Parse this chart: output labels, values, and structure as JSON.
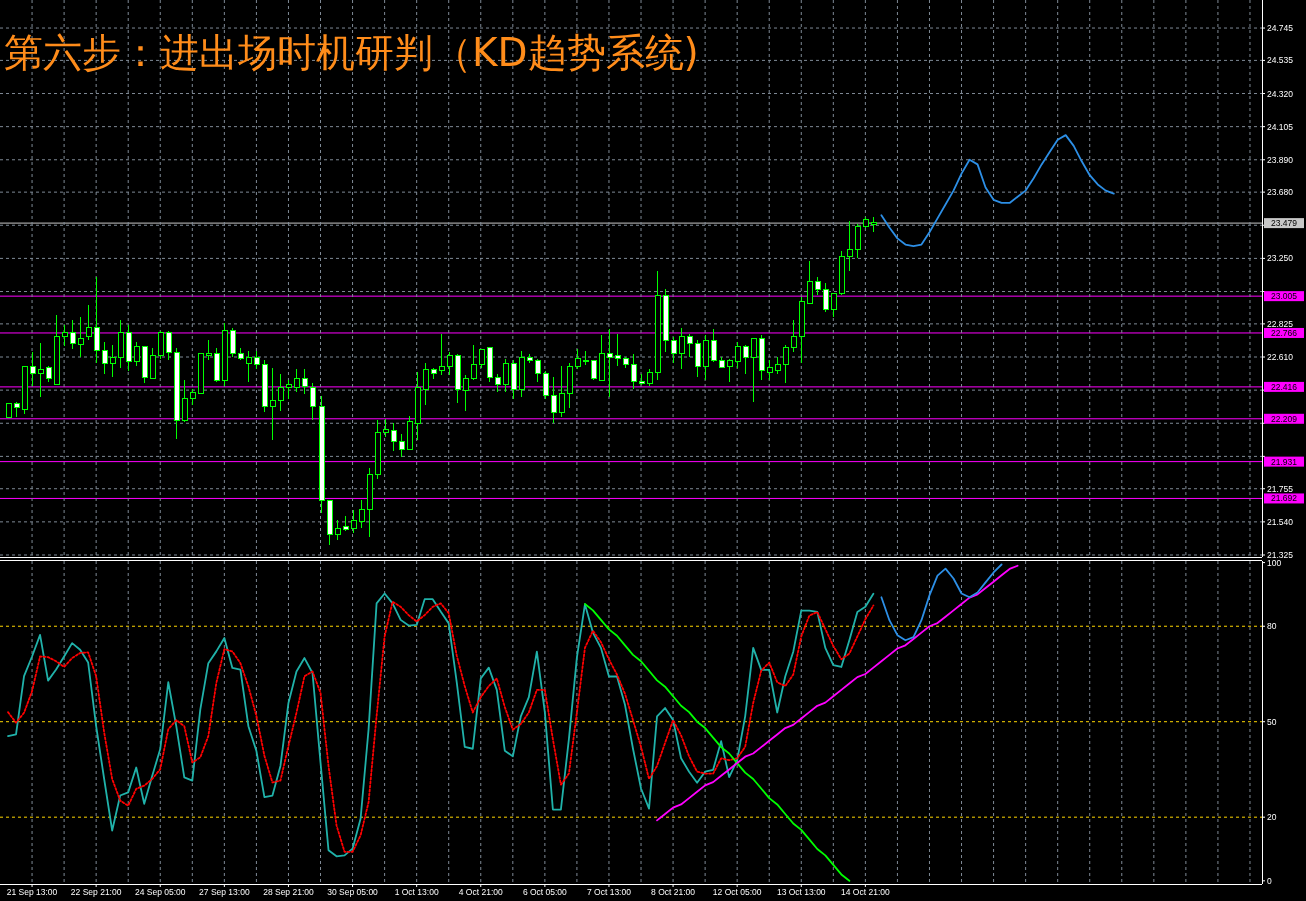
{
  "chart_data": [
    {
      "type": "candlestick",
      "title": "第六步：进出场时机研判（KD趋势系统)",
      "color": "#00ff00",
      "categories": [
        null,
        null,
        null,
        null,
        null,
        null,
        null,
        null,
        null,
        null,
        null,
        null,
        null,
        null,
        null,
        null,
        null,
        null,
        null,
        null,
        null,
        null,
        null,
        null,
        null,
        null,
        null,
        null,
        null,
        null,
        null,
        null,
        null,
        null,
        null,
        null,
        null,
        null,
        null,
        null,
        null,
        null,
        null,
        null,
        null,
        null,
        null,
        null,
        null,
        null,
        null,
        null,
        null,
        null,
        null,
        null,
        null,
        null,
        null,
        null,
        null,
        null,
        null,
        null,
        null,
        null,
        null,
        null,
        null,
        null,
        null,
        null,
        null,
        null,
        null,
        null,
        null,
        null,
        null,
        null,
        null,
        null,
        null,
        null,
        null,
        null,
        null,
        null,
        null,
        null,
        null,
        null,
        null,
        null,
        null,
        null,
        null,
        null,
        null,
        null,
        null,
        null,
        null,
        null,
        null,
        null,
        null,
        null,
        null,
        null,
        null,
        null,
        null,
        null,
        null,
        null,
        null,
        null,
        null,
        null,
        null,
        null,
        null,
        null,
        null,
        null,
        null,
        null,
        null,
        null,
        null,
        null,
        null,
        null,
        null,
        null,
        null,
        null,
        null,
        null,
        null,
        null,
        null,
        null,
        null,
        null,
        null,
        null,
        null,
        null,
        null,
        null,
        null,
        null,
        null,
        null,
        null
      ],
      "ohlc": [
        [
          22.22,
          22.31,
          22.22,
          22.31
        ],
        [
          22.31,
          22.32,
          22.22,
          22.28
        ],
        [
          22.27,
          22.55,
          22.24,
          22.55
        ],
        [
          22.55,
          22.64,
          22.42,
          22.5
        ],
        [
          22.5,
          22.7,
          22.35,
          22.53
        ],
        [
          22.54,
          22.55,
          22.45,
          22.47
        ],
        [
          22.43,
          22.88,
          22.43,
          22.74
        ],
        [
          22.74,
          22.82,
          22.68,
          22.77
        ],
        [
          22.77,
          22.85,
          22.66,
          22.7
        ],
        [
          22.69,
          22.87,
          22.61,
          22.73
        ],
        [
          22.74,
          22.95,
          22.72,
          22.8
        ],
        [
          22.8,
          23.13,
          22.57,
          22.65
        ],
        [
          22.65,
          22.71,
          22.5,
          22.57
        ],
        [
          22.57,
          22.69,
          22.48,
          22.61
        ],
        [
          22.61,
          22.85,
          22.54,
          22.77
        ],
        [
          22.77,
          22.82,
          22.52,
          22.58
        ],
        [
          22.58,
          22.71,
          22.55,
          22.68
        ],
        [
          22.68,
          22.68,
          22.44,
          22.48
        ],
        [
          22.47,
          22.67,
          22.47,
          22.62
        ],
        [
          22.62,
          22.78,
          22.6,
          22.77
        ],
        [
          22.77,
          22.78,
          22.59,
          22.64
        ],
        [
          22.64,
          22.67,
          22.08,
          22.2
        ],
        [
          22.2,
          22.46,
          22.19,
          22.34
        ],
        [
          22.34,
          22.4,
          22.3,
          22.38
        ],
        [
          22.37,
          22.63,
          22.37,
          22.63
        ],
        [
          22.62,
          22.72,
          22.59,
          22.63
        ],
        [
          22.63,
          22.67,
          22.45,
          22.46
        ],
        [
          22.46,
          22.83,
          22.42,
          22.78
        ],
        [
          22.78,
          22.8,
          22.61,
          22.63
        ],
        [
          22.63,
          22.67,
          22.59,
          22.6
        ],
        [
          22.57,
          22.65,
          22.45,
          22.61
        ],
        [
          22.61,
          22.65,
          22.53,
          22.56
        ],
        [
          22.56,
          22.59,
          22.25,
          22.29
        ],
        [
          22.29,
          22.54,
          22.07,
          22.33
        ],
        [
          22.33,
          22.5,
          22.26,
          22.41
        ],
        [
          22.41,
          22.46,
          22.34,
          22.43
        ],
        [
          22.41,
          22.53,
          22.38,
          22.47
        ],
        [
          22.47,
          22.53,
          22.37,
          22.42
        ],
        [
          22.41,
          22.44,
          22.2,
          22.29
        ],
        [
          22.29,
          22.36,
          21.6,
          21.68
        ],
        [
          21.68,
          21.68,
          21.39,
          21.46
        ],
        [
          21.46,
          21.55,
          21.42,
          21.5
        ],
        [
          21.51,
          21.58,
          21.48,
          21.49
        ],
        [
          21.5,
          21.62,
          21.47,
          21.55
        ],
        [
          21.54,
          21.68,
          21.5,
          21.62
        ],
        [
          21.62,
          21.89,
          21.44,
          21.85
        ],
        [
          21.85,
          22.2,
          21.82,
          22.12
        ],
        [
          22.12,
          22.21,
          22.09,
          22.14
        ],
        [
          22.13,
          22.18,
          22.0,
          22.06
        ],
        [
          22.06,
          22.11,
          21.96,
          22.01
        ],
        [
          22.01,
          22.23,
          22.01,
          22.19
        ],
        [
          22.18,
          22.51,
          22.07,
          22.41
        ],
        [
          22.4,
          22.57,
          22.3,
          22.53
        ],
        [
          22.53,
          22.54,
          22.47,
          22.5
        ],
        [
          22.52,
          22.76,
          22.49,
          22.55
        ],
        [
          22.55,
          22.64,
          22.49,
          22.62
        ],
        [
          22.62,
          22.63,
          22.31,
          22.4
        ],
        [
          22.39,
          22.49,
          22.26,
          22.47
        ],
        [
          22.47,
          22.69,
          22.46,
          22.56
        ],
        [
          22.56,
          22.66,
          22.54,
          22.66
        ],
        [
          22.67,
          22.67,
          22.45,
          22.48
        ],
        [
          22.48,
          22.5,
          22.38,
          22.43
        ],
        [
          22.43,
          22.6,
          22.38,
          22.57
        ],
        [
          22.57,
          22.59,
          22.34,
          22.4
        ],
        [
          22.4,
          22.65,
          22.35,
          22.61
        ],
        [
          22.61,
          22.63,
          22.57,
          22.59
        ],
        [
          22.59,
          22.6,
          22.45,
          22.5
        ],
        [
          22.5,
          22.52,
          22.34,
          22.36
        ],
        [
          22.36,
          22.48,
          22.18,
          22.25
        ],
        [
          22.25,
          22.55,
          22.22,
          22.37
        ],
        [
          22.37,
          22.57,
          22.28,
          22.55
        ],
        [
          22.55,
          22.66,
          22.53,
          22.6
        ],
        [
          22.59,
          22.65,
          22.56,
          22.58
        ],
        [
          22.59,
          22.59,
          22.46,
          22.47
        ],
        [
          22.46,
          22.75,
          22.46,
          22.63
        ],
        [
          22.63,
          22.79,
          22.35,
          22.61
        ],
        [
          22.62,
          22.76,
          22.55,
          22.6
        ],
        [
          22.6,
          22.61,
          22.54,
          22.56
        ],
        [
          22.56,
          22.63,
          22.4,
          22.45
        ],
        [
          22.45,
          22.5,
          22.43,
          22.44
        ],
        [
          22.44,
          22.53,
          22.42,
          22.51
        ],
        [
          22.51,
          23.17,
          22.46,
          23.01
        ],
        [
          23.01,
          23.05,
          22.64,
          22.72
        ],
        [
          22.72,
          22.74,
          22.57,
          22.63
        ],
        [
          22.63,
          22.8,
          22.53,
          22.74
        ],
        [
          22.74,
          22.76,
          22.61,
          22.7
        ],
        [
          22.7,
          22.72,
          22.48,
          22.55
        ],
        [
          22.55,
          22.75,
          22.46,
          22.72
        ],
        [
          22.72,
          22.79,
          22.58,
          22.59
        ],
        [
          22.59,
          22.61,
          22.54,
          22.54
        ],
        [
          22.55,
          22.6,
          22.45,
          22.59
        ],
        [
          22.58,
          22.71,
          22.54,
          22.68
        ],
        [
          22.68,
          22.69,
          22.5,
          22.61
        ],
        [
          22.61,
          22.73,
          22.32,
          22.73
        ],
        [
          22.73,
          22.75,
          22.46,
          22.52
        ],
        [
          22.51,
          22.59,
          22.46,
          22.54
        ],
        [
          22.52,
          22.61,
          22.5,
          22.56
        ],
        [
          22.56,
          22.69,
          22.44,
          22.67
        ],
        [
          22.67,
          22.85,
          22.64,
          22.74
        ],
        [
          22.74,
          23.0,
          22.57,
          22.97
        ],
        [
          22.96,
          23.23,
          22.96,
          23.1
        ],
        [
          23.1,
          23.13,
          23.01,
          23.05
        ],
        [
          23.05,
          23.09,
          22.9,
          22.92
        ],
        [
          22.92,
          23.02,
          22.87,
          23.02
        ],
        [
          23.02,
          23.3,
          23.01,
          23.26
        ],
        [
          23.26,
          23.49,
          23.17,
          23.31
        ],
        [
          23.31,
          23.47,
          23.25,
          23.46
        ],
        [
          23.46,
          23.52,
          23.45,
          23.5
        ],
        [
          23.47,
          23.52,
          23.42,
          23.48
        ],
        null,
        null,
        null,
        null,
        null,
        null,
        null,
        null,
        null,
        null,
        null,
        null,
        null,
        null,
        null,
        null,
        null,
        null,
        null,
        null,
        null,
        null,
        null,
        null,
        null,
        null,
        null,
        null,
        null,
        null,
        null,
        null,
        null,
        null,
        null,
        null,
        null,
        null,
        null,
        null,
        null,
        null,
        null,
        null,
        null,
        null,
        null,
        null
      ],
      "series": [
        {
          "type": "line",
          "color": "#2d8fe6",
          "values": [
            null,
            null,
            null,
            null,
            null,
            null,
            null,
            null,
            null,
            null,
            null,
            null,
            null,
            null,
            null,
            null,
            null,
            null,
            null,
            null,
            null,
            null,
            null,
            null,
            null,
            null,
            null,
            null,
            null,
            null,
            null,
            null,
            null,
            null,
            null,
            null,
            null,
            null,
            null,
            null,
            null,
            null,
            null,
            null,
            null,
            null,
            null,
            null,
            null,
            null,
            null,
            null,
            null,
            null,
            null,
            null,
            null,
            null,
            null,
            null,
            null,
            null,
            null,
            null,
            null,
            null,
            null,
            null,
            null,
            null,
            null,
            null,
            null,
            null,
            null,
            null,
            null,
            null,
            null,
            null,
            null,
            null,
            null,
            null,
            null,
            null,
            null,
            null,
            null,
            null,
            null,
            null,
            null,
            null,
            null,
            null,
            null,
            null,
            null,
            null,
            null,
            null,
            null,
            null,
            null,
            null,
            null,
            null,
            null,
            23.53,
            23.45,
            23.38,
            23.34,
            23.33,
            23.34,
            23.42,
            23.51,
            23.6,
            23.69,
            23.8,
            23.89,
            23.86,
            23.71,
            23.63,
            23.61,
            23.61,
            23.65,
            23.69,
            23.77,
            23.86,
            23.94,
            24.02,
            24.05,
            23.98,
            23.88,
            23.79,
            23.73,
            23.69,
            23.67,
            null,
            null,
            null,
            null,
            null,
            null,
            null,
            null,
            null,
            null,
            null,
            null,
            null,
            null,
            null,
            null,
            null,
            null
          ]
        }
      ],
      "ylim": [
        21.312,
        24.927
      ],
      "yticks": [
        {
          "value": 21.325,
          "label": "21.325"
        },
        {
          "value": 21.54,
          "label": "21.540"
        },
        {
          "value": 21.755,
          "label": "21.755"
        },
        {
          "value": 21.965,
          "label": null
        },
        {
          "value": 22.18,
          "label": null
        },
        {
          "value": 22.395,
          "label": null
        },
        {
          "value": 22.61,
          "label": "22.610"
        },
        {
          "value": 22.825,
          "label": "22.825"
        },
        {
          "value": 23.035,
          "label": null
        },
        {
          "value": 23.25,
          "label": "23.250"
        },
        {
          "value": 23.465,
          "label": null
        },
        {
          "value": 23.68,
          "label": "23.680"
        },
        {
          "value": 23.89,
          "label": "23.890"
        },
        {
          "value": 24.105,
          "label": "24.105"
        },
        {
          "value": 24.32,
          "label": "24.320"
        },
        {
          "value": 24.535,
          "label": "24.535"
        },
        {
          "value": 24.745,
          "label": "24.745"
        }
      ],
      "ref_lines": [
        {
          "axis": "y",
          "value": 23.479,
          "label": "23.479",
          "color": "#c8c8c8",
          "line_style": "solid"
        },
        {
          "axis": "y",
          "value": 23.005,
          "label": "23.005",
          "color": "#ff00ff",
          "line_style": "solid"
        },
        {
          "axis": "y",
          "value": 22.766,
          "label": "22.766",
          "color": "#ff00ff",
          "line_style": "solid"
        },
        {
          "axis": "y",
          "value": 22.416,
          "label": "22.416",
          "color": "#ff00ff",
          "line_style": "solid"
        },
        {
          "axis": "y",
          "value": 22.209,
          "label": "22.209",
          "color": "#ff00ff",
          "line_style": "solid"
        },
        {
          "axis": "y",
          "value": 21.931,
          "label": "21.931",
          "color": "#ff00ff",
          "line_style": "solid"
        },
        {
          "axis": "y",
          "value": 21.692,
          "label": "21.692",
          "color": "#ff00ff",
          "line_style": "solid"
        }
      ],
      "grid": true,
      "tick_labels": "y"
    },
    {
      "type": "line",
      "categories": [
        null,
        null,
        null,
        "21 Sep 13:00",
        null,
        null,
        null,
        null,
        null,
        null,
        null,
        "22 Sep 21:00",
        null,
        null,
        null,
        null,
        null,
        null,
        null,
        "24 Sep 05:00",
        null,
        null,
        null,
        null,
        null,
        null,
        null,
        "27 Sep 13:00",
        null,
        null,
        null,
        null,
        null,
        null,
        null,
        "28 Sep 21:00",
        null,
        null,
        null,
        null,
        null,
        null,
        null,
        "30 Sep 05:00",
        null,
        null,
        null,
        null,
        null,
        null,
        null,
        "1 Oct 13:00",
        null,
        null,
        null,
        null,
        null,
        null,
        null,
        "4 Oct 21:00",
        null,
        null,
        null,
        null,
        null,
        null,
        null,
        "6 Oct 05:00",
        null,
        null,
        null,
        null,
        null,
        null,
        null,
        "7 Oct 13:00",
        null,
        null,
        null,
        null,
        null,
        null,
        null,
        "8 Oct 21:00",
        null,
        null,
        null,
        null,
        null,
        null,
        null,
        "12 Oct 05:00",
        null,
        null,
        null,
        null,
        null,
        null,
        null,
        "13 Oct 13:00",
        null,
        null,
        null,
        null,
        null,
        null,
        null,
        "14 Oct 21:00",
        null,
        null,
        null,
        null,
        null,
        null,
        null,
        null,
        null,
        null,
        null,
        null,
        null,
        null,
        null,
        null,
        null,
        null,
        null,
        null,
        null,
        null,
        null,
        null,
        null,
        null,
        null,
        null,
        null,
        null,
        null,
        null,
        null,
        null,
        null,
        null,
        null,
        null,
        null,
        null,
        null,
        null,
        null,
        null,
        null,
        null,
        null,
        null,
        null
      ],
      "series": [
        {
          "color": "#20b2aa",
          "line_style": "solid",
          "values": [
            45.5,
            46.0,
            64.3,
            70.5,
            77.3,
            62.9,
            66.4,
            70.5,
            74.7,
            72.6,
            68.6,
            48.6,
            32.0,
            15.8,
            26.8,
            27.8,
            35.6,
            24.2,
            33.0,
            41.4,
            62.4,
            48.6,
            32.5,
            31.5,
            53.9,
            68.4,
            72.1,
            76.3,
            66.9,
            66.4,
            48.6,
            40.8,
            26.3,
            26.8,
            36.1,
            55.9,
            65.8,
            70.0,
            65.3,
            37.2,
            9.6,
            7.7,
            8.0,
            10.1,
            19.5,
            47.6,
            87.2,
            90.3,
            87.2,
            82.0,
            80.2,
            80.4,
            88.5,
            88.5,
            84.6,
            80.9,
            62.4,
            42.1,
            41.5,
            63.6,
            67.0,
            60.0,
            40.9,
            39.1,
            51.7,
            57.7,
            72.0,
            52.9,
            22.4,
            22.4,
            44.5,
            70.2,
            86.9,
            78.0,
            73.2,
            64.2,
            64.2,
            55.3,
            41.5,
            29.0,
            22.7,
            51.7,
            54.3,
            50.5,
            38.5,
            34.3,
            30.8,
            34.3,
            34.9,
            43.9,
            32.6,
            37.9,
            51.7,
            73.2,
            66.3,
            66.3,
            52.9,
            64.2,
            72.0,
            84.9,
            84.9,
            84.5,
            73.2,
            67.8,
            67.2,
            75.6,
            84.5,
            86.1,
            90.2,
            null,
            null,
            null,
            null,
            null,
            null,
            null,
            null,
            null,
            null,
            null,
            null,
            null,
            null,
            null,
            null,
            null,
            null,
            null,
            null,
            null,
            null,
            null,
            null,
            null,
            null,
            null,
            null,
            null,
            null,
            null,
            null,
            null,
            null,
            null,
            null,
            null,
            null,
            null,
            null,
            null,
            null,
            null,
            null,
            null,
            null,
            null,
            null
          ]
        },
        {
          "color": "#ff0000",
          "line_style": "dotted",
          "values": [
            53.0,
            49.7,
            52.8,
            59.6,
            70.5,
            70.3,
            69.0,
            67.2,
            70.0,
            71.6,
            71.8,
            64.3,
            46.6,
            32.0,
            25.2,
            23.6,
            28.9,
            29.9,
            32.0,
            35.1,
            47.6,
            50.5,
            48.6,
            37.2,
            38.8,
            45.5,
            62.2,
            72.8,
            72.1,
            68.4,
            61.1,
            51.8,
            39.3,
            30.9,
            31.5,
            42.4,
            52.8,
            64.3,
            65.8,
            59.1,
            36.1,
            17.4,
            9.1,
            9.1,
            14.3,
            24.7,
            51.8,
            76.8,
            87.7,
            86.1,
            83.5,
            81.5,
            83.5,
            86.1,
            87.2,
            84.1,
            70.8,
            61.2,
            52.9,
            57.7,
            61.2,
            63.6,
            54.6,
            47.5,
            49.3,
            52.9,
            60.0,
            60.0,
            44.5,
            30.2,
            33.7,
            52.9,
            73.2,
            78.6,
            75.0,
            69.6,
            64.8,
            58.8,
            50.5,
            42.1,
            32.0,
            36.1,
            43.3,
            50.5,
            45.7,
            39.1,
            34.3,
            33.7,
            33.7,
            38.5,
            37.9,
            38.5,
            42.1,
            55.9,
            66.0,
            68.6,
            62.4,
            61.2,
            64.8,
            76.8,
            83.3,
            84.5,
            79.1,
            73.8,
            69.6,
            71.4,
            76.8,
            82.2,
            86.5,
            null,
            null,
            null,
            null,
            null,
            null,
            null,
            null,
            null,
            null,
            null,
            null,
            null,
            null,
            null,
            null,
            null,
            null,
            null,
            null,
            null,
            null,
            null,
            null,
            null,
            null,
            null,
            null,
            null,
            null,
            null,
            null,
            null,
            null,
            null,
            null,
            null,
            null,
            null,
            null,
            null,
            null,
            null,
            null,
            null,
            null,
            null,
            null
          ]
        },
        {
          "color": "#00ff00",
          "line_style": "solid",
          "values": [
            null,
            null,
            null,
            null,
            null,
            null,
            null,
            null,
            null,
            null,
            null,
            null,
            null,
            null,
            null,
            null,
            null,
            null,
            null,
            null,
            null,
            null,
            null,
            null,
            null,
            null,
            null,
            null,
            null,
            null,
            null,
            null,
            null,
            null,
            null,
            null,
            null,
            null,
            null,
            null,
            null,
            null,
            null,
            null,
            null,
            null,
            null,
            null,
            null,
            null,
            null,
            null,
            null,
            null,
            null,
            null,
            null,
            null,
            null,
            null,
            null,
            null,
            null,
            null,
            null,
            null,
            null,
            null,
            null,
            null,
            null,
            null,
            87,
            85,
            82,
            79,
            77,
            74,
            71,
            69,
            66,
            63,
            61,
            58,
            55,
            53,
            50,
            48,
            45,
            42,
            40,
            37,
            34,
            32,
            29,
            26,
            24,
            21,
            18,
            16,
            13,
            10,
            8,
            5,
            2,
            0,
            null,
            null,
            null,
            null,
            null,
            null,
            null,
            null,
            null,
            null,
            null,
            null,
            null,
            null,
            null,
            null,
            null,
            null,
            null,
            null,
            null,
            null,
            null,
            null,
            null,
            null,
            null,
            null,
            null,
            null,
            null,
            null,
            null,
            null,
            null,
            null,
            null,
            null,
            null,
            null,
            null,
            null,
            null,
            null,
            null,
            null,
            null,
            null,
            null,
            null,
            null
          ]
        },
        {
          "color": "#ff00ff",
          "line_style": "solid",
          "values": [
            null,
            null,
            null,
            null,
            null,
            null,
            null,
            null,
            null,
            null,
            null,
            null,
            null,
            null,
            null,
            null,
            null,
            null,
            null,
            null,
            null,
            null,
            null,
            null,
            null,
            null,
            null,
            null,
            null,
            null,
            null,
            null,
            null,
            null,
            null,
            null,
            null,
            null,
            null,
            null,
            null,
            null,
            null,
            null,
            null,
            null,
            null,
            null,
            null,
            null,
            null,
            null,
            null,
            null,
            null,
            null,
            null,
            null,
            null,
            null,
            null,
            null,
            null,
            null,
            null,
            null,
            null,
            null,
            null,
            null,
            null,
            null,
            null,
            null,
            null,
            null,
            null,
            null,
            null,
            null,
            null,
            19,
            21,
            23,
            24,
            26,
            28,
            30,
            31,
            33,
            35,
            37,
            39,
            40,
            42,
            44,
            46,
            48,
            49,
            51,
            53,
            55,
            56,
            58,
            60,
            62,
            64,
            65,
            67,
            69,
            71,
            73,
            74,
            76,
            78,
            80,
            81,
            83,
            85,
            87,
            89,
            90,
            92,
            94,
            96,
            98,
            99,
            null,
            null,
            null,
            null,
            null,
            null,
            null,
            null,
            null,
            null,
            null,
            null,
            null,
            null,
            null,
            null,
            null,
            null,
            null,
            null,
            null,
            null,
            null,
            null,
            null,
            null,
            null,
            null,
            null,
            null
          ]
        },
        {
          "color": "#2d8fe6",
          "line_style": "solid",
          "values": [
            null,
            null,
            null,
            null,
            null,
            null,
            null,
            null,
            null,
            null,
            null,
            null,
            null,
            null,
            null,
            null,
            null,
            null,
            null,
            null,
            null,
            null,
            null,
            null,
            null,
            null,
            null,
            null,
            null,
            null,
            null,
            null,
            null,
            null,
            null,
            null,
            null,
            null,
            null,
            null,
            null,
            null,
            null,
            null,
            null,
            null,
            null,
            null,
            null,
            null,
            null,
            null,
            null,
            null,
            null,
            null,
            null,
            null,
            null,
            null,
            null,
            null,
            null,
            null,
            null,
            null,
            null,
            null,
            null,
            null,
            null,
            null,
            null,
            null,
            null,
            null,
            null,
            null,
            null,
            null,
            null,
            null,
            null,
            null,
            null,
            null,
            null,
            null,
            null,
            null,
            null,
            null,
            null,
            null,
            null,
            null,
            null,
            null,
            null,
            null,
            null,
            null,
            null,
            null,
            null,
            null,
            null,
            null,
            null,
            89.1,
            81.9,
            77.2,
            75.6,
            76.6,
            81.9,
            89.7,
            95.9,
            98.1,
            95.0,
            90.3,
            89.1,
            90.6,
            93.8,
            96.9,
            99.4,
            null,
            null,
            null,
            null,
            null,
            null,
            null,
            null,
            null,
            null,
            null,
            null,
            null,
            null,
            null,
            null,
            null,
            null,
            null,
            null,
            null,
            null,
            null,
            null,
            null,
            null,
            null,
            null,
            null,
            null,
            null,
            null
          ]
        }
      ],
      "ylim": [
        -1,
        100.5
      ],
      "yticks": [
        0,
        20,
        50,
        80,
        100
      ],
      "ref_lines": [
        {
          "axis": "y",
          "value": 80,
          "color": "#ffd700",
          "line_style": "dashed"
        },
        {
          "axis": "y",
          "value": 50,
          "color": "#ffd700",
          "line_style": "dashed"
        },
        {
          "axis": "y",
          "value": 20,
          "color": "#ffd700",
          "line_style": "dashed"
        }
      ],
      "grid": "x"
    }
  ]
}
